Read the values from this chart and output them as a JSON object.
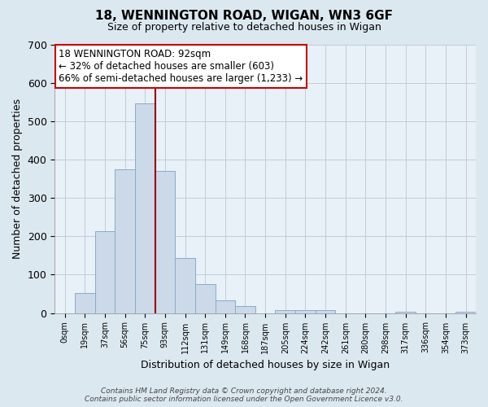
{
  "title": "18, WENNINGTON ROAD, WIGAN, WN3 6GF",
  "subtitle": "Size of property relative to detached houses in Wigan",
  "xlabel": "Distribution of detached houses by size in Wigan",
  "ylabel": "Number of detached properties",
  "bar_labels": [
    "0sqm",
    "19sqm",
    "37sqm",
    "56sqm",
    "75sqm",
    "93sqm",
    "112sqm",
    "131sqm",
    "149sqm",
    "168sqm",
    "187sqm",
    "205sqm",
    "224sqm",
    "242sqm",
    "261sqm",
    "280sqm",
    "298sqm",
    "317sqm",
    "336sqm",
    "354sqm",
    "373sqm"
  ],
  "bar_heights": [
    0,
    53,
    213,
    375,
    547,
    370,
    143,
    75,
    33,
    19,
    0,
    8,
    8,
    8,
    0,
    0,
    0,
    3,
    0,
    0,
    3
  ],
  "bar_color": "#ccd9e8",
  "bar_edge_color": "#8aaac8",
  "vline_color": "#990000",
  "ylim": [
    0,
    700
  ],
  "yticks": [
    0,
    100,
    200,
    300,
    400,
    500,
    600,
    700
  ],
  "annotation_title": "18 WENNINGTON ROAD: 92sqm",
  "annotation_line1": "← 32% of detached houses are smaller (603)",
  "annotation_line2": "66% of semi-detached houses are larger (1,233) →",
  "annotation_box_color": "#ffffff",
  "annotation_box_edge": "#cc0000",
  "footer_line1": "Contains HM Land Registry data © Crown copyright and database right 2024.",
  "footer_line2": "Contains public sector information licensed under the Open Government Licence v3.0.",
  "background_color": "#dce8f0",
  "plot_background": "#e8f0f8",
  "grid_color": "#c0ccd8"
}
